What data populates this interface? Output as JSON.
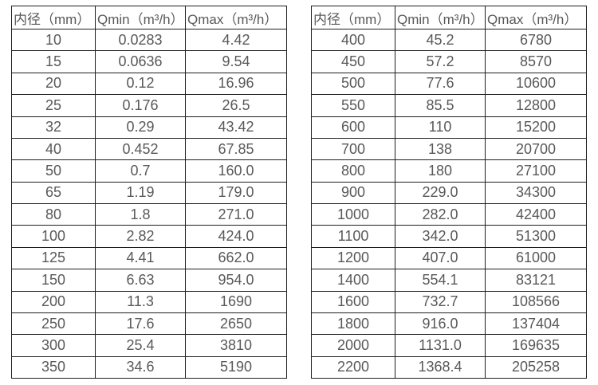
{
  "tables": [
    {
      "name": "flow-spec-table-small-diameters",
      "header": [
        "内径（mm）",
        "Qmin（m³/h）",
        "Qmax（m³/h）"
      ],
      "rows": [
        [
          "10",
          "0.0283",
          "4.42"
        ],
        [
          "15",
          "0.0636",
          "9.54"
        ],
        [
          "20",
          "0.12",
          "16.96"
        ],
        [
          "25",
          "0.176",
          "26.5"
        ],
        [
          "32",
          "0.29",
          "43.42"
        ],
        [
          "40",
          "0.452",
          "67.85"
        ],
        [
          "50",
          "0.7",
          "160.0"
        ],
        [
          "65",
          "1.19",
          "179.0"
        ],
        [
          "80",
          "1.8",
          "271.0"
        ],
        [
          "100",
          "2.82",
          "424.0"
        ],
        [
          "125",
          "4.41",
          "662.0"
        ],
        [
          "150",
          "6.63",
          "954.0"
        ],
        [
          "200",
          "11.3",
          "1690"
        ],
        [
          "250",
          "17.6",
          "2650"
        ],
        [
          "300",
          "25.4",
          "3810"
        ],
        [
          "350",
          "34.6",
          "5190"
        ]
      ]
    },
    {
      "name": "flow-spec-table-large-diameters",
      "header": [
        "内径（mm）",
        "Qmin（m³/h）",
        "Qmax（m³/h）"
      ],
      "rows": [
        [
          "400",
          "45.2",
          "6780"
        ],
        [
          "450",
          "57.2",
          "8570"
        ],
        [
          "500",
          "77.6",
          "10600"
        ],
        [
          "550",
          "85.5",
          "12800"
        ],
        [
          "600",
          "110",
          "15200"
        ],
        [
          "700",
          "138",
          "20700"
        ],
        [
          "800",
          "180",
          "27100"
        ],
        [
          "900",
          "229.0",
          "34300"
        ],
        [
          "1000",
          "282.0",
          "42400"
        ],
        [
          "1100",
          "342.0",
          "51300"
        ],
        [
          "1200",
          "407.0",
          "61000"
        ],
        [
          "1400",
          "554.1",
          "83121"
        ],
        [
          "1600",
          "732.7",
          "108566"
        ],
        [
          "1800",
          "916.0",
          "137404"
        ],
        [
          "2000",
          "1131.0",
          "169635"
        ],
        [
          "2200",
          "1368.4",
          "205258"
        ]
      ]
    }
  ],
  "colors": {
    "border": "#1f1f1f",
    "text": "#595959",
    "background": "#ffffff"
  }
}
